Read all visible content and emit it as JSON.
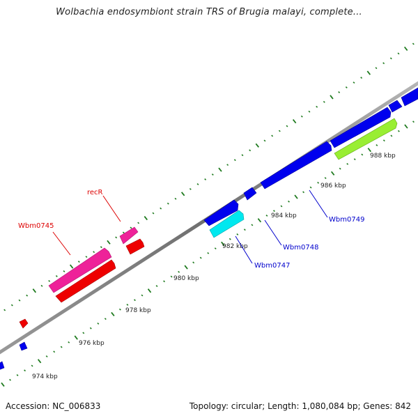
{
  "title": "Wolbachia endosymbiont strain TRS of Brugia malayi, complete...",
  "accession": "Accession: NC_006833",
  "summary": "Topology: circular; Length: 1,080,084 bp; Genes: 842",
  "tick_labels": [
    "974 kbp",
    "976 kbp",
    "978 kbp",
    "980 kbp",
    "982 kbp",
    "984 kbp",
    "986 kbp",
    "988 kbp"
  ],
  "genes": [
    {
      "label": "recR",
      "color": "#dd0000"
    },
    {
      "label": "Wbm0745",
      "color": "#dd0000"
    },
    {
      "label": "Wbm0747",
      "color": "#0000cc"
    },
    {
      "label": "Wbm0748",
      "color": "#0000cc"
    },
    {
      "label": "Wbm0749",
      "color": "#0000cc"
    }
  ],
  "colors": {
    "backbone": "#8a8a8a",
    "tick": "#1e7a1e",
    "forward_cds": "#0000ee",
    "forward_highlight": "#00e0e8",
    "forward_other": "#99ee33",
    "reverse_cds": "#ee0000",
    "reverse_highlight": "#ee2299"
  }
}
